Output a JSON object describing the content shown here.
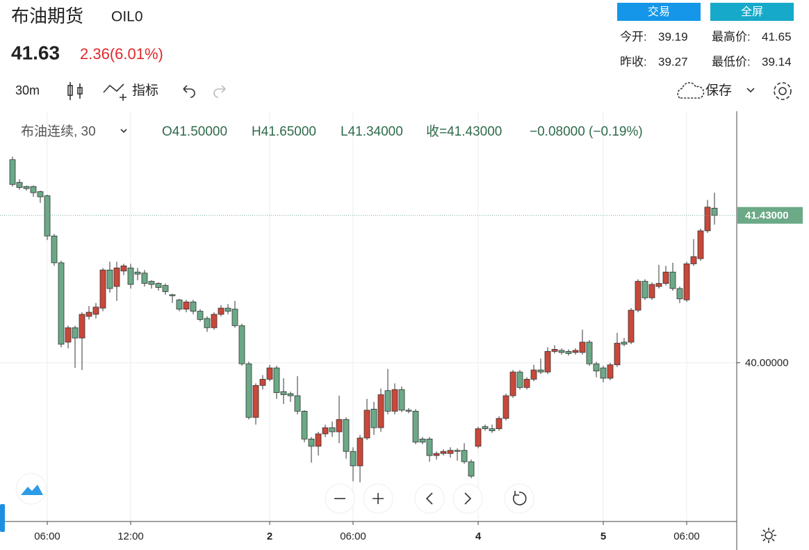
{
  "header": {
    "title": "布油期货",
    "code": "OIL0",
    "price": "41.63",
    "change": "2.36(6.01%)",
    "buttons": [
      "交易",
      "全屏"
    ],
    "stats": [
      {
        "label": "今开:",
        "value": "39.19"
      },
      {
        "label": "最高价:",
        "value": "41.65"
      },
      {
        "label": "昨收:",
        "value": "39.27"
      },
      {
        "label": "最低价:",
        "value": "39.14"
      }
    ]
  },
  "toolbar": {
    "interval": "30m",
    "indicators": "指标",
    "save": "保存"
  },
  "legend": {
    "symbol": "布油连续, 30",
    "open": "O41.50000",
    "high": "H41.65000",
    "low": "L41.34000",
    "close": "收=41.43000",
    "change": "−0.08000 (−0.19%)"
  },
  "chart_data": {
    "type": "candlestick",
    "up_color": "#c8483a",
    "down_color": "#6ba987",
    "grid": true,
    "ylim": [
      38.46,
      42.44
    ],
    "yticks": [
      {
        "value": 40,
        "label": "40.00000"
      }
    ],
    "last_price": {
      "value": 41.43,
      "label": "41.43000"
    },
    "categories": [
      null,
      null,
      null,
      null,
      null,
      "06:00",
      null,
      null,
      null,
      null,
      null,
      null,
      null,
      null,
      null,
      null,
      null,
      "12:00",
      null,
      null,
      null,
      null,
      null,
      null,
      null,
      null,
      null,
      null,
      null,
      null,
      null,
      null,
      null,
      null,
      null,
      null,
      null,
      "2",
      null,
      null,
      null,
      null,
      null,
      null,
      null,
      null,
      null,
      null,
      null,
      "06:00",
      null,
      null,
      null,
      null,
      null,
      null,
      null,
      null,
      null,
      null,
      null,
      null,
      null,
      null,
      null,
      null,
      null,
      "4",
      null,
      null,
      null,
      null,
      null,
      null,
      null,
      null,
      null,
      null,
      null,
      null,
      null,
      null,
      null,
      null,
      null,
      "5",
      null,
      null,
      null,
      null,
      null,
      null,
      null,
      null,
      null,
      null,
      null,
      "06:00",
      null,
      null,
      null,
      null
    ],
    "open": [
      41.97,
      41.75,
      41.71,
      41.71,
      41.66,
      41.62,
      41.23,
      40.97,
      40.2,
      40.34,
      40.24,
      40.45,
      40.47,
      40.53,
      40.9,
      40.74,
      40.89,
      40.92,
      40.88,
      40.87,
      40.79,
      40.77,
      40.75,
      40.66,
      40.61,
      40.52,
      40.59,
      40.5,
      40.43,
      40.34,
      40.47,
      40.53,
      40.52,
      40.36,
      39.99,
      39.47,
      39.78,
      39.84,
      39.95,
      39.72,
      39.7,
      39.68,
      39.53,
      39.26,
      39.19,
      39.31,
      39.37,
      39.33,
      39.45,
      39.14,
      39.0,
      39.27,
      39.55,
      39.37,
      39.73,
      39.53,
      39.74,
      39.54,
      39.53,
      39.26,
      39.26,
      39.1,
      39.12,
      39.12,
      39.15,
      39.15,
      39.04,
      39.19,
      39.38,
      39.36,
      39.36,
      39.46,
      39.68,
      39.91,
      39.76,
      39.84,
      39.93,
      39.91,
      40.11,
      40.12,
      40.11,
      40.1,
      40.1,
      40.2,
      39.99,
      39.95,
      39.85,
      39.98,
      40.2,
      40.2,
      40.51,
      40.79,
      40.63,
      40.74,
      40.77,
      40.88,
      40.72,
      40.61,
      40.96,
      41.01,
      41.28,
      41.5
    ],
    "high": [
      42.0,
      41.78,
      41.72,
      41.72,
      41.67,
      41.63,
      41.25,
      40.99,
      40.36,
      40.36,
      40.49,
      40.55,
      40.58,
      40.92,
      40.98,
      40.98,
      40.96,
      40.96,
      40.92,
      40.9,
      40.8,
      40.78,
      40.77,
      40.67,
      40.62,
      40.61,
      40.61,
      40.52,
      40.45,
      40.49,
      40.56,
      40.57,
      40.6,
      40.38,
      40.01,
      39.8,
      39.88,
      39.98,
      39.97,
      39.85,
      39.72,
      39.87,
      39.54,
      39.28,
      39.33,
      39.4,
      39.43,
      39.68,
      39.47,
      39.18,
      39.3,
      39.65,
      39.62,
      39.75,
      39.94,
      39.8,
      39.77,
      39.56,
      39.55,
      39.28,
      39.28,
      39.14,
      39.16,
      39.18,
      39.17,
      39.22,
      39.06,
      39.38,
      39.4,
      39.4,
      39.48,
      39.7,
      39.93,
      39.93,
      39.86,
      39.98,
      40.04,
      40.15,
      40.17,
      40.14,
      40.13,
      40.14,
      40.32,
      40.22,
      40.01,
      39.97,
      40.0,
      40.29,
      40.24,
      40.53,
      40.81,
      40.81,
      40.78,
      40.95,
      40.94,
      40.97,
      40.74,
      40.98,
      41.2,
      41.3,
      41.58,
      41.65
    ],
    "low": [
      41.71,
      41.68,
      41.67,
      41.61,
      41.55,
      41.19,
      40.94,
      40.15,
      40.14,
      39.95,
      39.93,
      40.42,
      40.43,
      40.5,
      40.68,
      40.6,
      40.85,
      40.72,
      40.8,
      40.74,
      40.72,
      40.7,
      40.66,
      40.58,
      40.5,
      40.49,
      40.47,
      40.4,
      40.3,
      40.32,
      40.45,
      40.47,
      40.34,
      39.97,
      39.45,
      39.4,
      39.74,
      39.82,
      39.65,
      39.6,
      39.62,
      39.5,
      39.23,
      39.03,
      39.1,
      39.28,
      39.28,
      39.22,
      39.07,
      38.85,
      38.84,
      39.25,
      39.3,
      39.33,
      39.5,
      39.5,
      39.52,
      39.51,
      39.21,
      39.21,
      39.04,
      39.06,
      39.1,
      39.08,
      39.05,
      39.02,
      38.88,
      39.17,
      39.34,
      39.32,
      39.34,
      39.44,
      39.66,
      39.74,
      39.74,
      39.82,
      39.89,
      39.89,
      40.09,
      40.08,
      40.07,
      40.08,
      40.08,
      39.97,
      39.86,
      39.81,
      39.83,
      39.96,
      40.16,
      40.18,
      40.49,
      40.61,
      40.61,
      40.72,
      40.75,
      40.7,
      40.58,
      40.59,
      40.94,
      40.99,
      41.26,
      41.34
    ],
    "close": [
      41.73,
      41.7,
      41.69,
      41.65,
      41.61,
      41.23,
      40.97,
      40.18,
      40.34,
      40.24,
      40.47,
      40.49,
      40.54,
      40.9,
      40.72,
      40.92,
      40.94,
      40.76,
      40.86,
      40.77,
      40.76,
      40.73,
      40.69,
      40.65,
      40.52,
      40.59,
      40.5,
      40.42,
      40.34,
      40.47,
      40.53,
      40.5,
      40.36,
      39.99,
      39.47,
      39.78,
      39.84,
      39.95,
      39.71,
      39.69,
      39.68,
      39.53,
      39.26,
      39.19,
      39.31,
      39.37,
      39.33,
      39.45,
      39.14,
      39.0,
      39.27,
      39.54,
      39.37,
      39.69,
      39.53,
      39.74,
      39.54,
      39.53,
      39.23,
      39.23,
      39.1,
      39.12,
      39.14,
      39.15,
      39.14,
      39.04,
      38.9,
      39.36,
      39.36,
      39.34,
      39.46,
      39.68,
      39.91,
      39.76,
      39.84,
      39.93,
      39.91,
      40.11,
      40.13,
      40.1,
      40.09,
      40.12,
      40.2,
      39.99,
      39.92,
      39.85,
      39.98,
      40.19,
      40.18,
      40.51,
      40.79,
      40.63,
      40.76,
      40.77,
      40.88,
      40.72,
      40.62,
      40.96,
      41.03,
      41.28,
      41.51,
      41.43
    ]
  }
}
